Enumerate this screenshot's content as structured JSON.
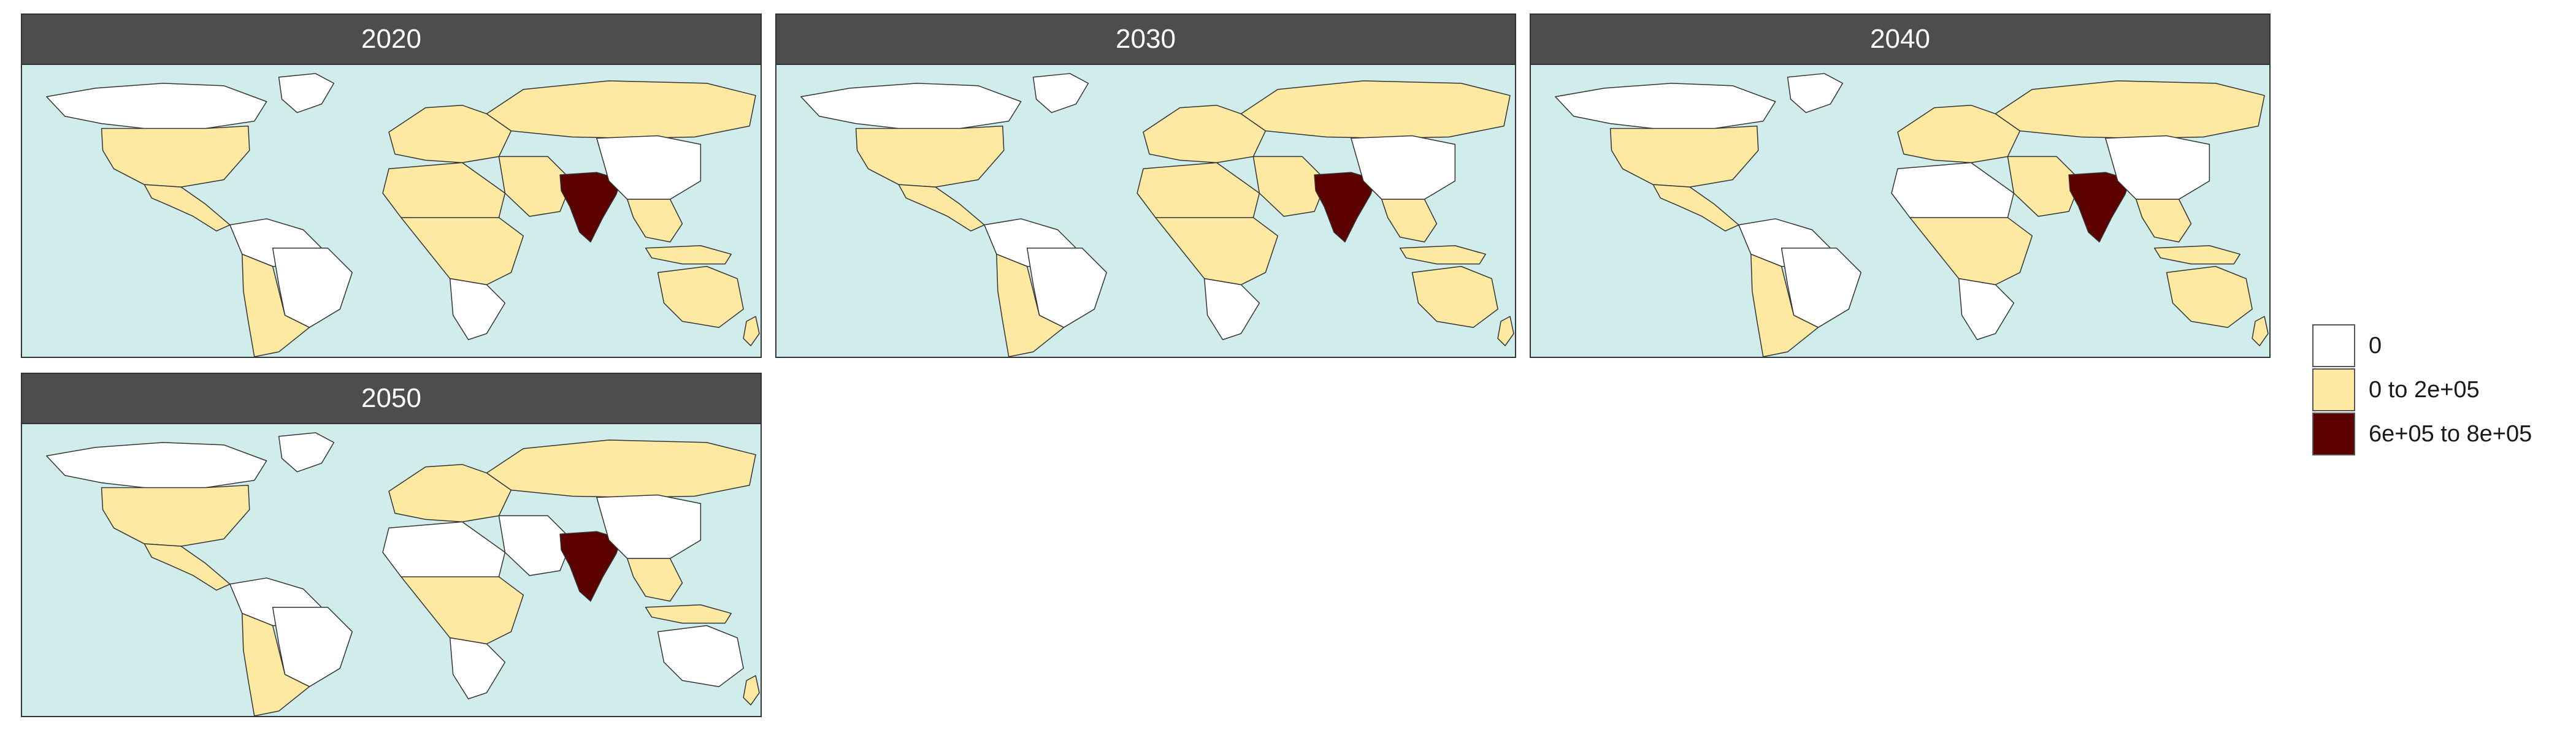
{
  "panels": [
    {
      "title": "2020",
      "countries": {
        "north_america_north": "0",
        "usa": "low",
        "mexico_central": "low",
        "south_america_north": "0",
        "brazil": "0",
        "south_america_south": "low",
        "greenland": "0",
        "europe": "low",
        "russia": "low",
        "middle_east": "low",
        "north_africa": "low",
        "sub_saharan_africa": "low",
        "southern_africa": "0",
        "india": "high",
        "china": "0",
        "southeast_asia": "low",
        "indonesia": "low",
        "australia": "low",
        "new_zealand": "low"
      }
    },
    {
      "title": "2030",
      "countries": {
        "north_america_north": "0",
        "usa": "low",
        "mexico_central": "low",
        "south_america_north": "0",
        "brazil": "0",
        "south_america_south": "low",
        "greenland": "0",
        "europe": "low",
        "russia": "low",
        "middle_east": "low",
        "north_africa": "low",
        "sub_saharan_africa": "low",
        "southern_africa": "0",
        "india": "high",
        "china": "0",
        "southeast_asia": "low",
        "indonesia": "low",
        "australia": "low",
        "new_zealand": "low"
      }
    },
    {
      "title": "2040",
      "countries": {
        "north_america_north": "0",
        "usa": "low",
        "mexico_central": "low",
        "south_america_north": "0",
        "brazil": "0",
        "south_america_south": "low",
        "greenland": "0",
        "europe": "low",
        "russia": "low",
        "middle_east": "low",
        "north_africa": "0",
        "sub_saharan_africa": "low",
        "southern_africa": "0",
        "india": "high",
        "china": "0",
        "southeast_asia": "low",
        "indonesia": "low",
        "australia": "low",
        "new_zealand": "low"
      }
    },
    {
      "title": "2050",
      "countries": {
        "north_america_north": "0",
        "usa": "low",
        "mexico_central": "low",
        "south_america_north": "0",
        "brazil": "0",
        "south_america_south": "low",
        "greenland": "0",
        "europe": "low",
        "russia": "low",
        "middle_east": "0",
        "north_africa": "0",
        "sub_saharan_africa": "low",
        "southern_africa": "0",
        "india": "high",
        "china": "0",
        "southeast_asia": "low",
        "indonesia": "low",
        "australia": "0",
        "new_zealand": "low"
      }
    }
  ],
  "legend": {
    "items": [
      {
        "key": "0",
        "label": "0",
        "color": "#ffffff"
      },
      {
        "key": "low",
        "label": "0 to 2e+05",
        "color": "#fde9a2"
      },
      {
        "key": "high",
        "label": "6e+05 to 8e+05",
        "color": "#5c0000"
      }
    ]
  },
  "colors": {
    "ocean": "#d0eceb",
    "border": "#333333"
  }
}
